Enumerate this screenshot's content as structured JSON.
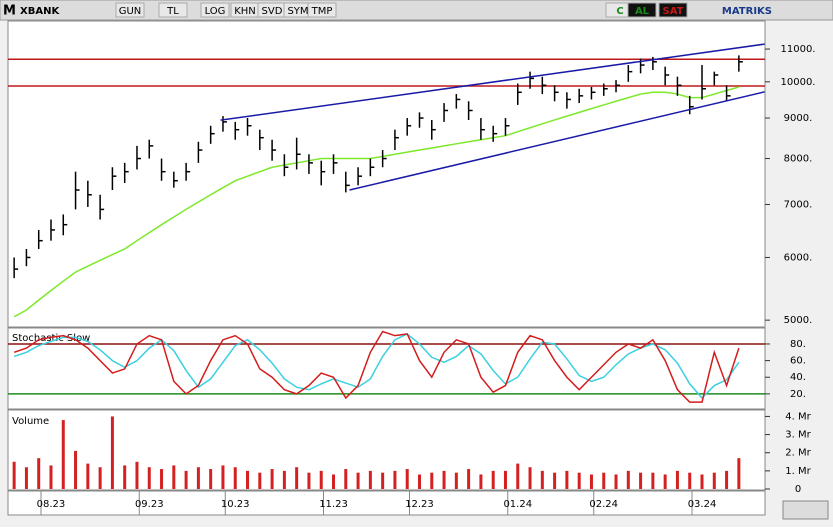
{
  "toolbar": {
    "logo": "M",
    "symbol": "XBANK",
    "buttons": [
      "GUN",
      "TL",
      "LOG",
      "KHN",
      "SVD",
      "SYM",
      "TMP"
    ],
    "right": [
      "C",
      "AL",
      "SAT"
    ],
    "brand": "MATRIKS"
  },
  "chart_data": [
    {
      "type": "ohlc",
      "color": "#000000",
      "log": true,
      "high": [
        6000,
        6150,
        6500,
        6700,
        6800,
        7700,
        7500,
        7200,
        7800,
        7900,
        8300,
        8450,
        8000,
        7700,
        7900,
        8400,
        8800,
        9050,
        8900,
        9000,
        8700,
        8450,
        8100,
        8500,
        8100,
        7950,
        8100,
        7700,
        7800,
        8000,
        8200,
        8700,
        9000,
        9150,
        8950,
        9400,
        9650,
        9450,
        9000,
        8800,
        9000,
        9950,
        10300,
        10150,
        9900,
        9700,
        9800,
        9850,
        9950,
        10050,
        10500,
        10700,
        10750,
        10450,
        10150,
        9600,
        10500,
        10300,
        9900,
        10800
      ],
      "low": [
        5650,
        5850,
        6150,
        6300,
        6400,
        6900,
        6950,
        6700,
        7300,
        7450,
        7750,
        8000,
        7500,
        7350,
        7500,
        7900,
        8350,
        8650,
        8450,
        8550,
        8200,
        7950,
        7600,
        7750,
        7650,
        7400,
        7650,
        7250,
        7400,
        7600,
        7800,
        8200,
        8550,
        8750,
        8450,
        8900,
        9250,
        8950,
        8450,
        8400,
        8550,
        9350,
        9800,
        9650,
        9450,
        9250,
        9400,
        9500,
        9600,
        9700,
        10000,
        10250,
        10350,
        9900,
        9600,
        9100,
        9500,
        9900,
        9450,
        10300
      ],
      "close": [
        5800,
        6000,
        6300,
        6500,
        6600,
        7300,
        7200,
        6900,
        7600,
        7700,
        8000,
        8300,
        7700,
        7500,
        7700,
        8200,
        8600,
        8900,
        8700,
        8800,
        8500,
        8200,
        7800,
        8100,
        7900,
        7700,
        7900,
        7400,
        7600,
        7800,
        8000,
        8500,
        8800,
        9000,
        8700,
        9200,
        9500,
        9200,
        8700,
        8600,
        8800,
        9700,
        10100,
        9900,
        9700,
        9500,
        9600,
        9700,
        9800,
        9900,
        10300,
        10500,
        10600,
        10200,
        9900,
        9300,
        9800,
        10200,
        9600,
        10600
      ],
      "ma": {
        "color": "#7ee82a",
        "values": [
          5050,
          5150,
          5300,
          5450,
          5600,
          5750,
          5850,
          5950,
          6050,
          6150,
          6300,
          6450,
          6600,
          6750,
          6900,
          7050,
          7200,
          7350,
          7500,
          7600,
          7700,
          7800,
          7850,
          7900,
          7950,
          8000,
          8000,
          8000,
          8000,
          8000,
          8050,
          8100,
          8150,
          8200,
          8250,
          8300,
          8350,
          8400,
          8450,
          8500,
          8550,
          8650,
          8750,
          8850,
          8950,
          9050,
          9150,
          9250,
          9350,
          9450,
          9550,
          9650,
          9700,
          9700,
          9650,
          9550,
          9550,
          9650,
          9750,
          9850
        ]
      },
      "trendlines": [
        {
          "color": "#1a1aa8",
          "x": [
            16.8,
            61.1
          ],
          "values": [
            8945,
            11160
          ]
        },
        {
          "color": "#1a1aa8",
          "x": [
            27.3,
            61.1
          ],
          "values": [
            7300,
            9713
          ]
        }
      ],
      "hlines": {
        "color": "#c0181a",
        "values": [
          10680,
          9880
        ]
      },
      "ylim": [
        4930,
        11900
      ],
      "yticks": [
        {
          "value": 5000,
          "label": "5000."
        },
        {
          "value": 6000,
          "label": "6000."
        },
        {
          "value": 7000,
          "label": "7000."
        },
        {
          "value": 8000,
          "label": "8000."
        },
        {
          "value": 9000,
          "label": "9000."
        },
        {
          "value": 10000,
          "label": "10000."
        },
        {
          "value": 11000,
          "label": "11000."
        }
      ]
    },
    {
      "type": "line",
      "title": "Stochastic Slow",
      "series": [
        {
          "color": "#d41c1c",
          "values": [
            70,
            75,
            85,
            88,
            90,
            85,
            75,
            60,
            45,
            50,
            80,
            90,
            85,
            35,
            20,
            30,
            60,
            85,
            90,
            80,
            50,
            40,
            25,
            20,
            30,
            45,
            40,
            15,
            30,
            70,
            95,
            90,
            92,
            60,
            40,
            70,
            85,
            80,
            40,
            22,
            30,
            70,
            90,
            85,
            60,
            40,
            25,
            40,
            55,
            70,
            80,
            75,
            85,
            60,
            25,
            10,
            10,
            70,
            30,
            75
          ]
        },
        {
          "color": "#3ad0e0",
          "values": [
            65,
            70,
            78,
            83,
            88,
            88,
            83,
            73,
            60,
            52,
            60,
            75,
            85,
            72,
            48,
            28,
            38,
            58,
            78,
            85,
            73,
            57,
            38,
            28,
            25,
            32,
            38,
            33,
            28,
            38,
            65,
            85,
            92,
            80,
            64,
            58,
            65,
            78,
            68,
            48,
            32,
            40,
            62,
            82,
            80,
            62,
            42,
            35,
            40,
            55,
            68,
            75,
            80,
            73,
            57,
            32,
            15,
            30,
            37,
            58
          ]
        }
      ],
      "levels": [
        {
          "value": 80,
          "color": "#8b1010"
        },
        {
          "value": 20,
          "color": "#1e8c1e"
        }
      ],
      "ylim": [
        3,
        98
      ],
      "yticks": [
        {
          "value": 20,
          "label": "20."
        },
        {
          "value": 40,
          "label": "40."
        },
        {
          "value": 60,
          "label": "60."
        },
        {
          "value": 80,
          "label": "80."
        }
      ]
    },
    {
      "type": "bar",
      "title": "Volume",
      "color": "#d42020",
      "categories": [
        null,
        null,
        null,
        "08.23",
        null,
        null,
        null,
        null,
        null,
        null,
        null,
        "09.23",
        null,
        null,
        null,
        null,
        null,
        null,
        "10.23",
        null,
        null,
        null,
        null,
        null,
        null,
        null,
        "11.23",
        null,
        null,
        null,
        null,
        null,
        null,
        "12.23",
        null,
        null,
        null,
        null,
        null,
        null,
        null,
        "01.24",
        null,
        null,
        null,
        null,
        null,
        null,
        "02.24",
        null,
        null,
        null,
        null,
        null,
        null,
        null,
        "03.24",
        null,
        null,
        null
      ],
      "values": [
        1.5,
        1.2,
        1.7,
        1.3,
        3.8,
        2.1,
        1.4,
        1.2,
        4.0,
        1.3,
        1.5,
        1.2,
        1.1,
        1.3,
        1.0,
        1.2,
        1.1,
        1.3,
        1.2,
        1.0,
        0.9,
        1.1,
        1.0,
        1.2,
        0.9,
        1.0,
        0.8,
        1.1,
        0.9,
        1.0,
        0.9,
        1.0,
        1.1,
        0.8,
        0.9,
        1.0,
        0.9,
        1.1,
        0.8,
        1.0,
        1.0,
        1.4,
        1.2,
        1.0,
        0.9,
        1.0,
        0.9,
        0.8,
        0.9,
        0.8,
        1.0,
        0.9,
        0.9,
        0.8,
        1.0,
        0.9,
        0.8,
        0.9,
        1.0,
        1.7
      ],
      "ylim": [
        0,
        4.3
      ],
      "yticks": [
        0,
        {
          "value": 1,
          "label": "1. Mr"
        },
        {
          "value": 2,
          "label": "2. Mr"
        },
        {
          "value": 3,
          "label": "3. Mr"
        },
        {
          "value": 4,
          "label": "4. Mr"
        }
      ]
    }
  ]
}
